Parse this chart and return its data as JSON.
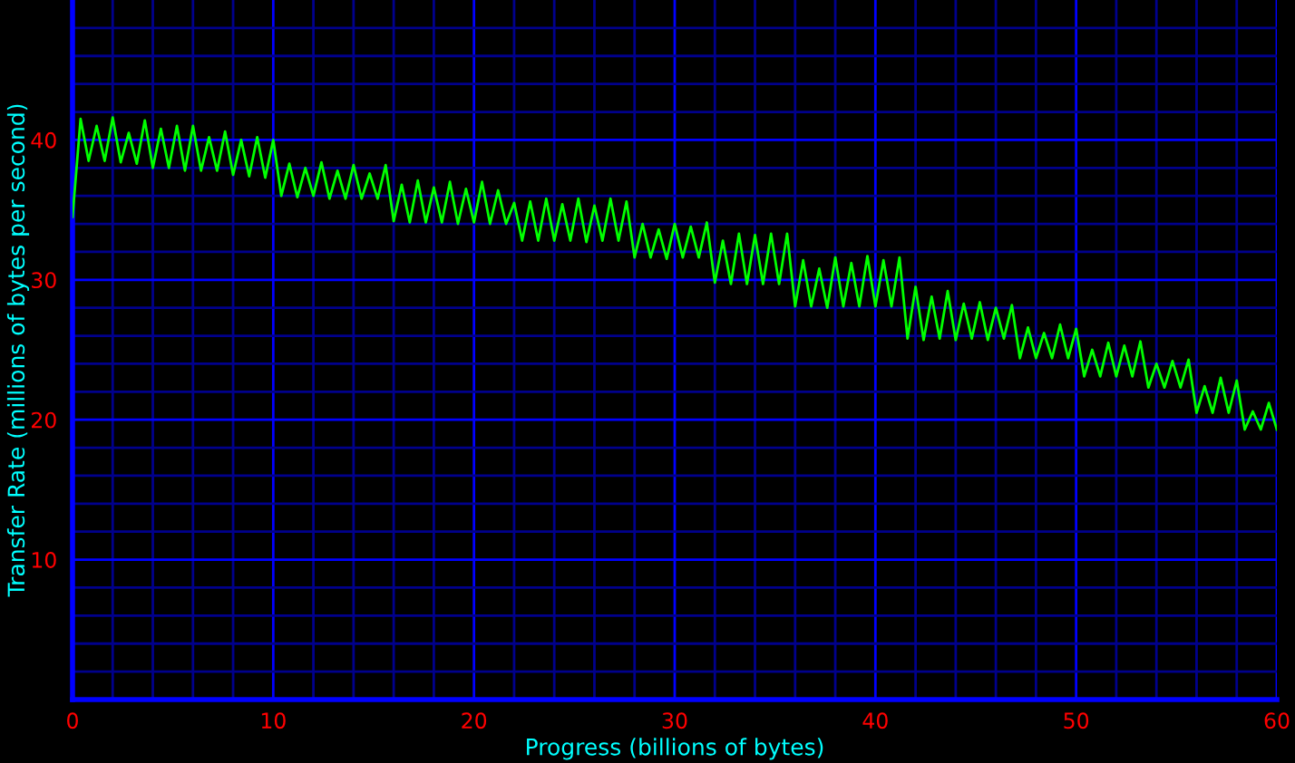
{
  "chart_data": {
    "type": "line",
    "xlabel": "Progress (billions of bytes)",
    "ylabel": "Transfer Rate (millions of bytes per second)",
    "x": [
      0,
      0.4,
      0.8,
      1.2,
      1.6,
      2.0,
      2.4,
      2.8,
      3.2,
      3.6,
      4.0,
      4.4,
      4.8,
      5.2,
      5.6,
      6.0,
      6.4,
      6.8,
      7.2,
      7.6,
      8.0,
      8.4,
      8.8,
      9.2,
      9.6,
      10.0,
      10.4,
      10.8,
      11.2,
      11.6,
      12.0,
      12.4,
      12.8,
      13.2,
      13.6,
      14.0,
      14.4,
      14.8,
      15.2,
      15.6,
      16.0,
      16.4,
      16.8,
      17.2,
      17.6,
      18.0,
      18.4,
      18.8,
      19.2,
      19.6,
      20.0,
      20.4,
      20.8,
      21.2,
      21.6,
      22.0,
      22.4,
      22.8,
      23.2,
      23.6,
      24.0,
      24.4,
      24.8,
      25.2,
      25.6,
      26.0,
      26.4,
      26.8,
      27.2,
      27.6,
      28.0,
      28.4,
      28.8,
      29.2,
      29.6,
      30.0,
      30.4,
      30.8,
      31.2,
      31.6,
      32.0,
      32.4,
      32.8,
      33.2,
      33.6,
      34.0,
      34.4,
      34.8,
      35.2,
      35.6,
      36.0,
      36.4,
      36.8,
      37.2,
      37.6,
      38.0,
      38.4,
      38.8,
      39.2,
      39.6,
      40.0,
      40.4,
      40.8,
      41.2,
      41.6,
      42.0,
      42.4,
      42.8,
      43.2,
      43.6,
      44.0,
      44.4,
      44.8,
      45.2,
      45.6,
      46.0,
      46.4,
      46.8,
      47.2,
      47.6,
      48.0,
      48.4,
      48.8,
      49.2,
      49.6,
      50.0,
      50.4,
      50.8,
      51.2,
      51.6,
      52.0,
      52.4,
      52.8,
      53.2,
      53.6,
      54.0,
      54.4,
      54.8,
      55.2,
      55.6,
      56.0,
      56.4,
      56.8,
      57.2,
      57.6,
      58.0,
      58.4,
      58.8,
      59.2,
      59.6,
      60.0
    ],
    "series": [
      {
        "color": "#00ff00",
        "values": [
          34.5,
          41.5,
          38.5,
          41.0,
          38.5,
          41.6,
          38.4,
          40.5,
          38.3,
          41.4,
          38.0,
          40.8,
          38.0,
          41.0,
          37.8,
          41.0,
          37.8,
          40.2,
          37.8,
          40.6,
          37.5,
          40.0,
          37.4,
          40.2,
          37.3,
          40.0,
          36.0,
          38.3,
          35.9,
          38.0,
          36.0,
          38.4,
          35.8,
          37.8,
          35.8,
          38.2,
          35.8,
          37.6,
          35.8,
          38.2,
          34.2,
          36.8,
          34.1,
          37.1,
          34.1,
          36.6,
          34.1,
          37.0,
          34.0,
          36.5,
          34.1,
          37.0,
          34.0,
          36.4,
          34.0,
          35.5,
          32.8,
          35.6,
          32.8,
          35.8,
          32.8,
          35.4,
          32.8,
          35.8,
          32.7,
          35.3,
          32.8,
          35.8,
          32.8,
          35.6,
          31.6,
          34.0,
          31.6,
          33.6,
          31.5,
          34.0,
          31.6,
          33.8,
          31.6,
          34.1,
          29.8,
          32.8,
          29.7,
          33.3,
          29.7,
          33.2,
          29.7,
          33.3,
          29.7,
          33.3,
          28.1,
          31.4,
          28.1,
          30.8,
          28.0,
          31.6,
          28.1,
          31.2,
          28.1,
          31.7,
          28.1,
          31.4,
          28.1,
          31.6,
          25.8,
          29.5,
          25.7,
          28.8,
          25.8,
          29.2,
          25.7,
          28.3,
          25.8,
          28.4,
          25.7,
          28.0,
          25.8,
          28.2,
          24.4,
          26.6,
          24.4,
          26.2,
          24.4,
          26.8,
          24.4,
          26.5,
          23.1,
          25.0,
          23.1,
          25.5,
          23.1,
          25.3,
          23.1,
          25.6,
          22.3,
          24.0,
          22.3,
          24.2,
          22.3,
          24.3,
          20.5,
          22.4,
          20.5,
          23.0,
          20.5,
          22.8,
          19.3,
          20.6,
          19.3,
          21.2,
          19.3
        ]
      }
    ],
    "xlim": [
      0,
      60
    ],
    "ylim": [
      0,
      50
    ],
    "xticks": [
      0,
      {
        "value": 2,
        "label": null
      },
      {
        "value": 4,
        "label": null
      },
      {
        "value": 6,
        "label": null
      },
      {
        "value": 8,
        "label": null
      },
      10,
      {
        "value": 12,
        "label": null
      },
      {
        "value": 14,
        "label": null
      },
      {
        "value": 16,
        "label": null
      },
      {
        "value": 18,
        "label": null
      },
      20,
      {
        "value": 22,
        "label": null
      },
      {
        "value": 24,
        "label": null
      },
      {
        "value": 26,
        "label": null
      },
      {
        "value": 28,
        "label": null
      },
      30,
      {
        "value": 32,
        "label": null
      },
      {
        "value": 34,
        "label": null
      },
      {
        "value": 36,
        "label": null
      },
      {
        "value": 38,
        "label": null
      },
      40,
      {
        "value": 42,
        "label": null
      },
      {
        "value": 44,
        "label": null
      },
      {
        "value": 46,
        "label": null
      },
      {
        "value": 48,
        "label": null
      },
      50,
      {
        "value": 52,
        "label": null
      },
      {
        "value": 54,
        "label": null
      },
      {
        "value": 56,
        "label": null
      },
      {
        "value": 58,
        "label": null
      },
      60
    ],
    "yticks": [
      {
        "value": 2,
        "label": null
      },
      {
        "value": 4,
        "label": null
      },
      {
        "value": 6,
        "label": null
      },
      {
        "value": 8,
        "label": null
      },
      10,
      {
        "value": 12,
        "label": null
      },
      {
        "value": 14,
        "label": null
      },
      {
        "value": 16,
        "label": null
      },
      {
        "value": 18,
        "label": null
      },
      20,
      {
        "value": 22,
        "label": null
      },
      {
        "value": 24,
        "label": null
      },
      {
        "value": 26,
        "label": null
      },
      {
        "value": 28,
        "label": null
      },
      30,
      {
        "value": 32,
        "label": null
      },
      {
        "value": 34,
        "label": null
      },
      {
        "value": 36,
        "label": null
      },
      {
        "value": 38,
        "label": null
      },
      40,
      {
        "value": 42,
        "label": null
      },
      {
        "value": 44,
        "label": null
      },
      {
        "value": 46,
        "label": null
      },
      {
        "value": 48,
        "label": null
      }
    ],
    "grid": true
  }
}
